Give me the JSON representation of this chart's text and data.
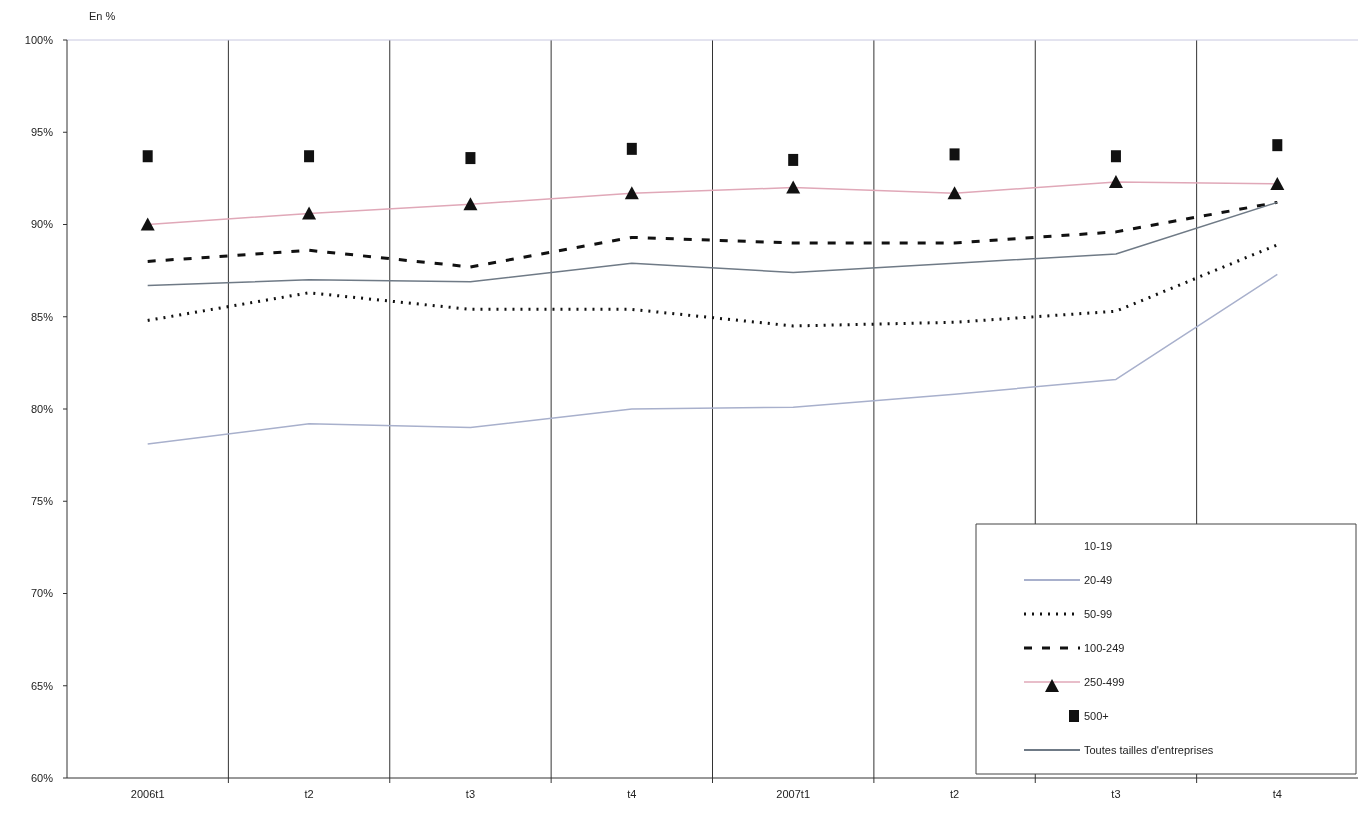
{
  "chart_data": {
    "type": "line",
    "ylabel": "En %",
    "categories": [
      "2006t1",
      "t2",
      "t3",
      "t4",
      "2007t1",
      "t2",
      "t3",
      "t4"
    ],
    "ylim": [
      60,
      100
    ],
    "yticks": [
      {
        "value": 60,
        "label": "60%"
      },
      {
        "value": 65,
        "label": "65%"
      },
      {
        "value": 70,
        "label": "70%"
      },
      {
        "value": 75,
        "label": "75%"
      },
      {
        "value": 80,
        "label": "80%"
      },
      {
        "value": 85,
        "label": "85%"
      },
      {
        "value": 90,
        "label": "90%"
      },
      {
        "value": 95,
        "label": "95%"
      },
      {
        "value": 100,
        "label": "100%"
      }
    ],
    "grid": "x",
    "legend": "bottom right",
    "series": [
      {
        "name": "10-19",
        "values": [
          null,
          null,
          null,
          null,
          null,
          null,
          null,
          null
        ]
      },
      {
        "name": "20-49",
        "color": "#a8b0cc",
        "values": [
          78.1,
          79.2,
          79.0,
          80.0,
          80.1,
          80.8,
          81.6,
          87.3
        ]
      },
      {
        "name": "50-99",
        "color": "#111111",
        "line_style": "dotted",
        "values": [
          84.8,
          86.3,
          85.4,
          85.4,
          84.5,
          84.7,
          85.3,
          88.9
        ]
      },
      {
        "name": "100-249",
        "color": "#111111",
        "line_style": "dashed",
        "values": [
          88.0,
          88.6,
          87.7,
          89.3,
          89.0,
          89.0,
          89.6,
          91.2
        ]
      },
      {
        "name": "250-499",
        "color": "#e0a8b8",
        "marker": "triangle",
        "values": [
          90.0,
          90.6,
          91.1,
          91.7,
          92.0,
          91.7,
          92.3,
          92.2
        ]
      },
      {
        "name": "500+",
        "color": "#111111",
        "type": "scatter",
        "marker": "square",
        "values": [
          93.7,
          93.7,
          93.6,
          94.1,
          93.5,
          93.8,
          93.7,
          94.3
        ]
      },
      {
        "name": "Toutes tailles d'entreprises",
        "color": "#6f7a86",
        "values": [
          86.7,
          87.0,
          86.9,
          87.9,
          87.4,
          87.9,
          88.4,
          91.2
        ]
      }
    ]
  }
}
